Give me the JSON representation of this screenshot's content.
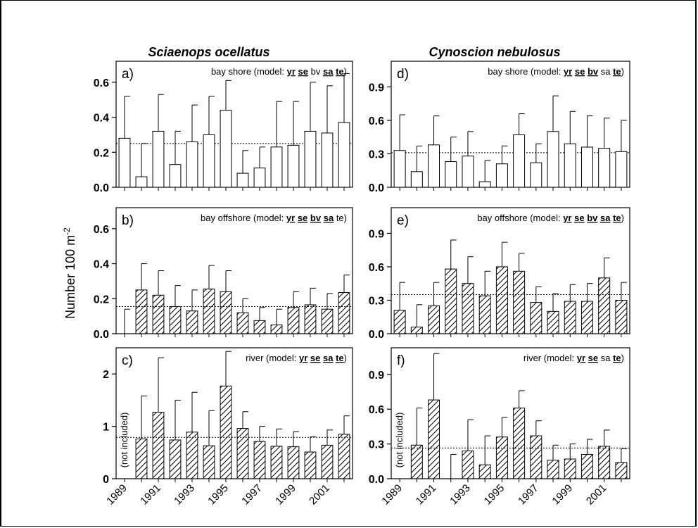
{
  "columns": [
    {
      "title": "Sciaenops ocellatus"
    },
    {
      "title": "Cynoscion nebulosus"
    }
  ],
  "ylabel_main": "Number 100 m",
  "ylabel_sup": "-2",
  "x_tick_labels": [
    "1989",
    "1991",
    "1993",
    "1995",
    "1997",
    "1999",
    "2001"
  ],
  "not_included_label": "(not included)",
  "chart_data": [
    {
      "type": "bar",
      "panel": "a)",
      "column": 0,
      "row": 0,
      "fill": "open",
      "habitat": "bay shore",
      "model_prefix": " (model: ",
      "model_terms": [
        {
          "t": "yr",
          "sig": true
        },
        {
          "t": "se",
          "sig": true
        },
        {
          "t": "bv",
          "sig": false
        },
        {
          "t": "sa",
          "sig": true
        },
        {
          "t": "te",
          "sig": true
        }
      ],
      "years": [
        1989,
        1990,
        1991,
        1992,
        1993,
        1994,
        1995,
        1996,
        1997,
        1998,
        1999,
        2000,
        2001,
        2002
      ],
      "values": [
        0.28,
        0.06,
        0.32,
        0.13,
        0.26,
        0.3,
        0.44,
        0.08,
        0.11,
        0.23,
        0.24,
        0.32,
        0.31,
        0.37
      ],
      "error_upper": [
        0.52,
        0.25,
        0.53,
        0.32,
        0.47,
        0.52,
        0.61,
        0.21,
        0.23,
        0.49,
        0.49,
        0.6,
        0.58,
        0.65
      ],
      "mean_line": 0.25,
      "ylim": [
        0,
        0.72
      ],
      "yticks": [
        0.0,
        0.2,
        0.4,
        0.6
      ],
      "yticklabels": [
        "0.0",
        "0.2",
        "0.4",
        "0.6"
      ]
    },
    {
      "type": "bar",
      "panel": "b)",
      "column": 0,
      "row": 1,
      "fill": "hatched",
      "habitat": "bay offshore",
      "model_prefix": " (model: ",
      "model_terms": [
        {
          "t": "yr",
          "sig": true
        },
        {
          "t": "se",
          "sig": true
        },
        {
          "t": "bv",
          "sig": true
        },
        {
          "t": "sa",
          "sig": true
        },
        {
          "t": "te",
          "sig": false
        }
      ],
      "years": [
        1989,
        1990,
        1991,
        1992,
        1993,
        1994,
        1995,
        1996,
        1997,
        1998,
        1999,
        2000,
        2001,
        2002
      ],
      "values": [
        0.0,
        0.25,
        0.22,
        0.155,
        0.13,
        0.255,
        0.24,
        0.12,
        0.075,
        0.05,
        0.15,
        0.165,
        0.14,
        0.235
      ],
      "error_upper": [
        0.14,
        0.4,
        0.36,
        0.275,
        0.25,
        0.39,
        0.36,
        0.2,
        0.15,
        0.14,
        0.24,
        0.26,
        0.23,
        0.335
      ],
      "mean_line": 0.155,
      "ylim": [
        0,
        0.72
      ],
      "yticks": [
        0.0,
        0.2,
        0.4,
        0.6
      ],
      "yticklabels": [
        "0.0",
        "0.2",
        "0.4",
        "0.6"
      ]
    },
    {
      "type": "bar",
      "panel": "c)",
      "column": 0,
      "row": 2,
      "fill": "hatched",
      "habitat": "river",
      "model_prefix": " (model: ",
      "model_terms": [
        {
          "t": "yr",
          "sig": true
        },
        {
          "t": "se",
          "sig": true
        },
        {
          "t": "sa",
          "sig": true
        },
        {
          "t": "te",
          "sig": true
        }
      ],
      "years": [
        1989,
        1990,
        1991,
        1992,
        1993,
        1994,
        1995,
        1996,
        1997,
        1998,
        1999,
        2000,
        2001,
        2002
      ],
      "values": [
        null,
        0.76,
        1.27,
        0.74,
        0.89,
        0.63,
        1.77,
        0.96,
        0.71,
        0.62,
        0.61,
        0.51,
        0.64,
        0.85
      ],
      "error_upper": [
        null,
        1.58,
        2.31,
        1.5,
        1.65,
        1.3,
        2.43,
        1.28,
        1.0,
        0.95,
        0.9,
        0.8,
        0.93,
        1.2
      ],
      "mean_line": 0.79,
      "not_included_year": 1989,
      "ylim": [
        0,
        2.5
      ],
      "yticks": [
        0,
        1,
        2
      ],
      "yticklabels": [
        "0",
        "1",
        "2"
      ]
    },
    {
      "type": "bar",
      "panel": "d)",
      "column": 1,
      "row": 0,
      "fill": "open",
      "habitat": "bay shore",
      "model_prefix": " (model: ",
      "model_terms": [
        {
          "t": "yr",
          "sig": true
        },
        {
          "t": "se",
          "sig": true
        },
        {
          "t": "bv",
          "sig": true
        },
        {
          "t": "sa",
          "sig": false
        },
        {
          "t": "te",
          "sig": true
        }
      ],
      "years": [
        1989,
        1990,
        1991,
        1992,
        1993,
        1994,
        1995,
        1996,
        1997,
        1998,
        1999,
        2000,
        2001,
        2002
      ],
      "values": [
        0.33,
        0.14,
        0.38,
        0.23,
        0.28,
        0.05,
        0.21,
        0.47,
        0.22,
        0.5,
        0.39,
        0.36,
        0.35,
        0.32
      ],
      "error_upper": [
        0.65,
        0.37,
        0.64,
        0.45,
        0.5,
        0.24,
        0.37,
        0.66,
        0.39,
        0.82,
        0.68,
        0.64,
        0.62,
        0.6
      ],
      "mean_line": 0.31,
      "ylim": [
        0,
        1.13
      ],
      "yticks": [
        0.0,
        0.3,
        0.6,
        0.9
      ],
      "yticklabels": [
        "0.0",
        "0.3",
        "0.6",
        "0.9"
      ]
    },
    {
      "type": "bar",
      "panel": "e)",
      "column": 1,
      "row": 1,
      "fill": "hatched",
      "habitat": "bay offshore",
      "model_prefix": " (model: ",
      "model_terms": [
        {
          "t": "yr",
          "sig": true
        },
        {
          "t": "se",
          "sig": true
        },
        {
          "t": "bv",
          "sig": true
        },
        {
          "t": "sa",
          "sig": true
        },
        {
          "t": "te",
          "sig": true
        }
      ],
      "years": [
        1989,
        1990,
        1991,
        1992,
        1993,
        1994,
        1995,
        1996,
        1997,
        1998,
        1999,
        2000,
        2001,
        2002
      ],
      "values": [
        0.21,
        0.06,
        0.25,
        0.58,
        0.45,
        0.34,
        0.6,
        0.56,
        0.28,
        0.2,
        0.29,
        0.29,
        0.5,
        0.3
      ],
      "error_upper": [
        0.46,
        0.26,
        0.46,
        0.84,
        0.69,
        0.56,
        0.82,
        0.72,
        0.42,
        0.36,
        0.44,
        0.45,
        0.68,
        0.46
      ],
      "mean_line": 0.35,
      "ylim": [
        0,
        1.13
      ],
      "yticks": [
        0.0,
        0.3,
        0.6,
        0.9
      ],
      "yticklabels": [
        "0.0",
        "0.3",
        "0.6",
        "0.9"
      ]
    },
    {
      "type": "bar",
      "panel": "f)",
      "column": 1,
      "row": 2,
      "fill": "hatched",
      "habitat": "river",
      "model_prefix": " (model: ",
      "model_terms": [
        {
          "t": "yr",
          "sig": true
        },
        {
          "t": "se",
          "sig": true
        },
        {
          "t": "sa",
          "sig": false
        },
        {
          "t": "te",
          "sig": true
        }
      ],
      "years": [
        1989,
        1990,
        1991,
        1992,
        1993,
        1994,
        1995,
        1996,
        1997,
        1998,
        1999,
        2000,
        2001,
        2002
      ],
      "values": [
        null,
        0.29,
        0.68,
        0.0,
        0.24,
        0.12,
        0.36,
        0.61,
        0.37,
        0.16,
        0.17,
        0.21,
        0.28,
        0.14
      ],
      "error_upper": [
        null,
        0.61,
        1.08,
        0.21,
        0.51,
        0.37,
        0.53,
        0.76,
        0.5,
        0.29,
        0.3,
        0.34,
        0.42,
        0.26
      ],
      "mean_line": 0.265,
      "not_included_year": 1989,
      "ylim": [
        0,
        1.13
      ],
      "yticks": [
        0.0,
        0.3,
        0.6,
        0.9
      ],
      "yticklabels": [
        "0.0",
        "0.3",
        "0.6",
        "0.9"
      ]
    }
  ]
}
